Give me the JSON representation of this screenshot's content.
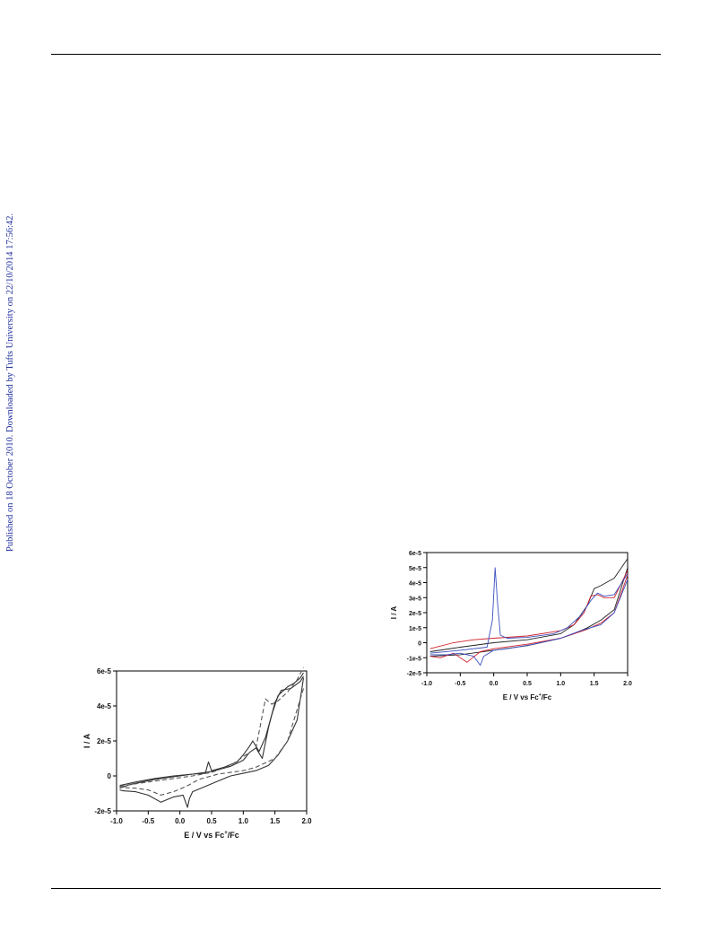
{
  "side_note": "Published on 18 October 2010. Downloaded by Tufts University on 22/10/2014 17:56:42.",
  "chart_data": [
    {
      "type": "line",
      "xlabel": "E / V vs Fc+/Fc",
      "xlabel_parts": {
        "pre": "E / V vs Fc",
        "sup": "+",
        "post": "/Fc"
      },
      "ylabel": "I / A",
      "xlim": [
        -1.0,
        2.0
      ],
      "ylim": [
        -2e-05,
        6e-05
      ],
      "x_ticks": [
        -1.0,
        -0.5,
        0.0,
        0.5,
        1.0,
        1.5,
        2.0
      ],
      "x_tick_labels": [
        "-1.0",
        "-0.5",
        "0.0",
        "0.5",
        "1.0",
        "1.5",
        "2.0"
      ],
      "y_ticks": [
        -2e-05,
        0,
        2e-05,
        4e-05,
        6e-05
      ],
      "y_tick_labels": [
        "-2e-5",
        "0",
        "2e-5",
        "4e-5",
        "6e-5"
      ],
      "colors": {
        "solid": "#333333",
        "dashed": "#555555"
      },
      "series": [
        {
          "style": "solid",
          "x": [
            -0.95,
            -0.8,
            -0.6,
            -0.4,
            -0.2,
            0,
            0.2,
            0.4,
            0.45,
            0.5,
            0.7,
            0.9,
            1.0,
            1.1,
            1.15,
            1.25,
            1.35,
            1.45,
            1.55,
            1.7,
            1.8,
            1.9,
            1.95
          ],
          "y": [
            -7e-06,
            -5e-06,
            -3.5e-06,
            -2e-06,
            -1e-06,
            0,
            1e-06,
            1.5e-06,
            8e-06,
            3e-06,
            5e-06,
            8e-06,
            1.2e-05,
            1.7e-05,
            2e-05,
            1.4e-05,
            2.2e-05,
            3.5e-05,
            4.6e-05,
            5.1e-05,
            5.3e-05,
            5.6e-05,
            5.9e-05
          ]
        },
        {
          "style": "solid",
          "x": [
            1.95,
            1.85,
            1.7,
            1.55,
            1.4,
            1.2,
            1.0,
            0.8,
            0.6,
            0.4,
            0.2,
            0.15,
            0.12,
            0.05,
            -0.1,
            -0.3,
            -0.5,
            -0.7,
            -0.9,
            -0.95
          ],
          "y": [
            5.6e-05,
            3.2e-05,
            2e-05,
            1.2e-05,
            6e-06,
            3e-06,
            1.5e-06,
            0,
            -3e-06,
            -6e-06,
            -9e-06,
            -1.3e-05,
            -1.8e-05,
            -1.1e-05,
            -1.2e-05,
            -1.5e-05,
            -1.1e-05,
            -9e-06,
            -8.5e-06,
            -8e-06
          ]
        },
        {
          "style": "solid",
          "x": [
            -0.95,
            -0.7,
            -0.4,
            -0.1,
            0.2,
            0.5,
            0.8,
            1.0,
            1.1,
            1.2,
            1.3,
            1.4,
            1.5,
            1.6,
            1.75,
            1.9,
            1.95
          ],
          "y": [
            -5.5e-06,
            -3.5e-06,
            -1.5e-06,
            0,
            1e-06,
            2.5e-06,
            5.5e-06,
            9e-06,
            1.35e-05,
            1.6e-05,
            1e-05,
            2.8e-05,
            4.2e-05,
            4.9e-05,
            5e-05,
            5.4e-05,
            5.7e-05
          ]
        },
        {
          "style": "dashed",
          "x": [
            -0.95,
            -0.7,
            -0.4,
            -0.1,
            0.2,
            0.5,
            0.8,
            1.0,
            1.2,
            1.35,
            1.45,
            1.55,
            1.7,
            1.85,
            1.95
          ],
          "y": [
            -6e-06,
            -4.5e-06,
            -3e-06,
            -1.5e-06,
            0,
            2e-06,
            6e-06,
            1.1e-05,
            1.6e-05,
            4.4e-05,
            4.1e-05,
            4.3e-05,
            4.8e-05,
            5.5e-05,
            6.2e-05
          ]
        },
        {
          "style": "dashed",
          "x": [
            1.95,
            1.7,
            1.5,
            1.2,
            1.0,
            0.6,
            0.3,
            0.1,
            -0.1,
            -0.3,
            -0.5,
            -0.7,
            -0.95
          ],
          "y": [
            5e-05,
            2e-05,
            1e-05,
            5e-06,
            3e-06,
            1e-06,
            -2e-06,
            -6e-06,
            -9e-06,
            -1.1e-05,
            -8e-06,
            -7e-06,
            -6.5e-06
          ]
        }
      ]
    },
    {
      "type": "line",
      "xlabel": "E / V vs Fc+/Fc",
      "xlabel_parts": {
        "pre": "E / V vs Fc",
        "sup": "+",
        "post": "/Fc"
      },
      "ylabel": "I / A",
      "xlim": [
        -1.0,
        2.0
      ],
      "ylim": [
        -2e-05,
        6e-05
      ],
      "x_ticks": [
        -1.0,
        -0.5,
        0.0,
        0.5,
        1.0,
        1.5,
        2.0
      ],
      "x_tick_labels": [
        "-1.0",
        "-0.5",
        "0.0",
        "0.5",
        "1.0",
        "1.5",
        "2.0"
      ],
      "y_ticks": [
        -2e-05,
        -1e-05,
        0,
        1e-05,
        2e-05,
        3e-05,
        4e-05,
        5e-05,
        6e-05
      ],
      "y_tick_labels": [
        "-2e-5",
        "-1e-5",
        "0",
        "1e-5",
        "2e-5",
        "3e-5",
        "4e-5",
        "5e-5",
        "6e-5"
      ],
      "colors": {
        "black": "#222222",
        "red": "#d0202a",
        "blue": "#3a4fc0"
      },
      "series": [
        {
          "color": "black",
          "x": [
            -0.95,
            -0.5,
            0,
            0.5,
            1.0,
            1.2,
            1.4,
            1.5,
            1.6,
            1.8,
            2.0
          ],
          "y": [
            -6e-06,
            -3e-06,
            0,
            2e-06,
            6e-06,
            1.2e-05,
            2.5e-05,
            3.6e-05,
            3.8e-05,
            4.3e-05,
            5.6e-05
          ]
        },
        {
          "color": "black",
          "x": [
            2.0,
            1.8,
            1.6,
            1.4,
            1.2,
            1.0,
            0.5,
            0.0,
            -0.5,
            -0.95
          ],
          "y": [
            5e-05,
            2.2e-05,
            1.5e-05,
            1e-05,
            6e-06,
            3e-06,
            -2e-06,
            -5e-06,
            -8e-06,
            -9e-06
          ]
        },
        {
          "color": "red",
          "x": [
            -0.95,
            -0.6,
            -0.3,
            0,
            0.5,
            1.0,
            1.2,
            1.35,
            1.45,
            1.55,
            1.65,
            1.8,
            2.0
          ],
          "y": [
            -4e-06,
            0,
            2e-06,
            3e-06,
            4.5e-06,
            8e-06,
            1.2e-05,
            2e-05,
            3.1e-05,
            3.2e-05,
            3e-05,
            3e-05,
            4.8e-05
          ]
        },
        {
          "color": "red",
          "x": [
            2.0,
            1.8,
            1.6,
            1.4,
            1.0,
            0.5,
            0.0,
            -0.2,
            -0.4,
            -0.6,
            -0.8,
            -0.95
          ],
          "y": [
            4.5e-05,
            2e-05,
            1.3e-05,
            9e-06,
            3e-06,
            -1e-06,
            -4e-06,
            -6e-06,
            -1.3e-05,
            -7e-06,
            -1e-05,
            -9e-06
          ]
        },
        {
          "color": "blue",
          "x": [
            -0.95,
            -0.5,
            -0.1,
            -0.02,
            0.02,
            0.06,
            0.1,
            0.2,
            0.5,
            0.9,
            1.1,
            1.3,
            1.45,
            1.55,
            1.65,
            1.8,
            2.0
          ],
          "y": [
            -7e-06,
            -5e-06,
            -3e-06,
            1.5e-05,
            5e-05,
            2.5e-05,
            5e-06,
            3e-06,
            3.5e-06,
            6e-06,
            1e-05,
            1.8e-05,
            2.8e-05,
            3.3e-05,
            3.1e-05,
            3.2e-05,
            4.6e-05
          ]
        },
        {
          "color": "blue",
          "x": [
            2.0,
            1.8,
            1.6,
            1.3,
            1.0,
            0.6,
            0.2,
            0.0,
            -0.15,
            -0.2,
            -0.3,
            -0.5,
            -0.7,
            -0.95
          ],
          "y": [
            4.2e-05,
            2e-05,
            1.2e-05,
            8e-06,
            3e-06,
            -1e-06,
            -4e-06,
            -5e-06,
            -9e-06,
            -1.5e-05,
            -9e-06,
            -7e-06,
            -8e-06,
            -8e-06
          ]
        }
      ]
    }
  ]
}
